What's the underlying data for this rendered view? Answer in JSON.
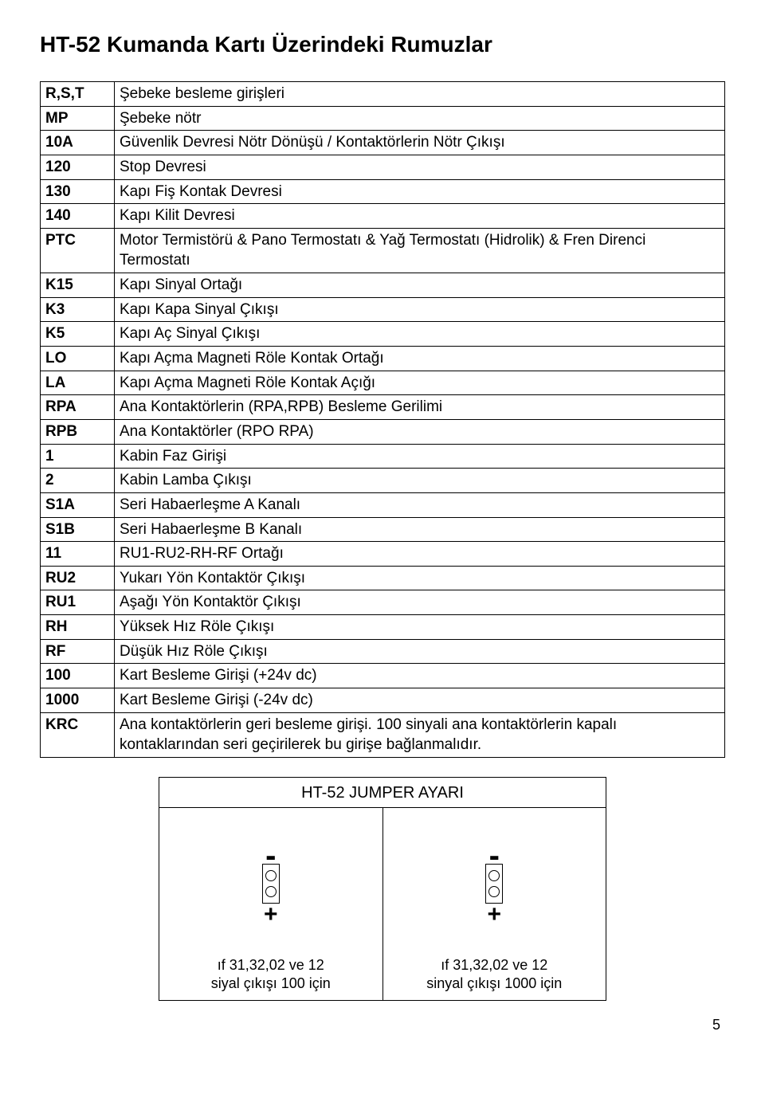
{
  "title": "HT-52  Kumanda Kartı Üzerindeki Rumuzlar",
  "rows": [
    {
      "code": "R,S,T",
      "desc": "Şebeke besleme girişleri"
    },
    {
      "code": "MP",
      "desc": "Şebeke nötr"
    },
    {
      "code": "10A",
      "desc": "Güvenlik Devresi Nötr Dönüşü / Kontaktörlerin Nötr Çıkışı"
    },
    {
      "code": "120",
      "desc": "Stop Devresi"
    },
    {
      "code": "130",
      "desc": "Kapı Fiş Kontak Devresi"
    },
    {
      "code": "140",
      "desc": "Kapı Kilit Devresi"
    },
    {
      "code": "PTC",
      "desc": "Motor Termistörü & Pano Termostatı & Yağ Termostatı (Hidrolik) & Fren Direnci Termostatı"
    },
    {
      "code": "K15",
      "desc": "Kapı Sinyal Ortağı"
    },
    {
      "code": "K3",
      "desc": "Kapı Kapa Sinyal Çıkışı"
    },
    {
      "code": "K5",
      "desc": "Kapı Aç Sinyal Çıkışı"
    },
    {
      "code": "LO",
      "desc": "Kapı Açma Magneti Röle Kontak Ortağı"
    },
    {
      "code": "LA",
      "desc": "Kapı Açma Magneti Röle Kontak Açığı"
    },
    {
      "code": "RPA",
      "desc": "Ana Kontaktörlerin (RPA,RPB) Besleme Gerilimi"
    },
    {
      "code": "RPB",
      "desc": "Ana Kontaktörler (RPO RPA)"
    },
    {
      "code": "1",
      "desc": "Kabin Faz Girişi"
    },
    {
      "code": "2",
      "desc": "Kabin Lamba Çıkışı"
    },
    {
      "code": "S1A",
      "desc": "Seri Habaerleşme A Kanalı"
    },
    {
      "code": "S1B",
      "desc": "Seri Habaerleşme B Kanalı"
    },
    {
      "code": "11",
      "desc": "RU1-RU2-RH-RF Ortağı"
    },
    {
      "code": "RU2",
      "desc": "Yukarı Yön Kontaktör Çıkışı"
    },
    {
      "code": "RU1",
      "desc": "Aşağı Yön Kontaktör Çıkışı"
    },
    {
      "code": "RH",
      "desc": "Yüksek Hız Röle Çıkışı"
    },
    {
      "code": "RF",
      "desc": "Düşük Hız Röle Çıkışı"
    },
    {
      "code": "100",
      "desc": "Kart Besleme Girişi (+24v dc)"
    },
    {
      "code": "1000",
      "desc": "Kart Besleme Girişi (-24v dc)"
    },
    {
      "code": "KRC",
      "desc": "Ana kontaktörlerin geri besleme girişi. 100 sinyali ana kontaktörlerin kapalı kontaklarından seri geçirilerek bu girişe bağlanmalıdır."
    }
  ],
  "diagram": {
    "title": "HT-52 JUMPER AYARI",
    "panels": [
      {
        "caption_l1": "ıf 31,32,02 ve 12",
        "caption_l2": "siyal çıkışı 100 için"
      },
      {
        "caption_l1": "ıf 31,32,02 ve 12",
        "caption_l2": "sinyal çıkışı 1000 için"
      }
    ],
    "minus": "-",
    "plus": "+"
  },
  "page_number": "5"
}
